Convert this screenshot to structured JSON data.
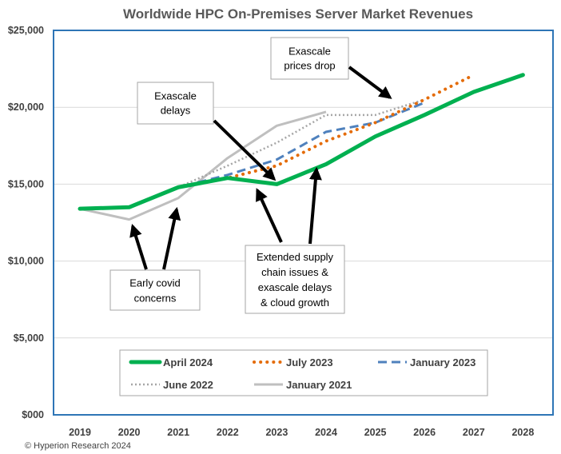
{
  "chart_data": {
    "type": "line",
    "title": "Worldwide HPC On-Premises Server Market Revenues",
    "xlabel": "",
    "ylabel": "",
    "x": [
      "2019",
      "2020",
      "2021",
      "2022",
      "2023",
      "2024",
      "2025",
      "2026",
      "2027",
      "2028"
    ],
    "y_ticks": [
      "$000",
      "$5,000",
      "$10,000",
      "$15,000",
      "$20,000",
      "$25,000"
    ],
    "ylim": [
      0,
      25000
    ],
    "grid": "horizontal",
    "legend_position": "bottom-inside",
    "series": [
      {
        "name": "April 2024",
        "color": "#00b050",
        "style": "solid-thick",
        "values": [
          13400,
          13500,
          14800,
          15400,
          15000,
          16300,
          18100,
          19500,
          21000,
          22100
        ]
      },
      {
        "name": "July 2023",
        "color": "#e46c0a",
        "style": "dotted-round",
        "values": [
          13400,
          13500,
          14800,
          15400,
          16200,
          17800,
          19000,
          20500,
          22100,
          null
        ]
      },
      {
        "name": "January 2023",
        "color": "#4f81bd",
        "style": "dashed",
        "values": [
          13400,
          13500,
          14800,
          15600,
          16600,
          18400,
          19000,
          20300,
          null,
          null
        ]
      },
      {
        "name": "June 2022",
        "color": "#a6a6a6",
        "style": "dotted",
        "values": [
          13400,
          13500,
          14800,
          16200,
          17700,
          19500,
          19500,
          20500,
          null,
          null
        ]
      },
      {
        "name": "January 2021",
        "color": "#bfbfbf",
        "style": "solid",
        "values": [
          13400,
          12700,
          14100,
          16700,
          18800,
          19700,
          null,
          null,
          null,
          null
        ]
      }
    ],
    "annotations": [
      {
        "id": "exascale-prices",
        "lines": [
          "Exascale",
          "prices drop"
        ],
        "target_year": 2025,
        "target_value": 19300
      },
      {
        "id": "exascale-delays",
        "lines": [
          "Exascale",
          "delays"
        ],
        "target_year": 2023,
        "target_value": 15200
      },
      {
        "id": "early-covid",
        "lines": [
          "Early covid",
          "concerns"
        ],
        "targets": [
          [
            2020,
            12600
          ],
          [
            2021,
            13600
          ]
        ]
      },
      {
        "id": "supply-chain",
        "lines": [
          "Extended supply",
          "chain issues &",
          "exascale delays",
          "& cloud growth"
        ],
        "targets": [
          [
            2023,
            14900
          ],
          [
            2024,
            16100
          ]
        ]
      }
    ]
  },
  "credit": "© Hyperion Research 2024",
  "colors": {
    "plot_border": "#2e75b6",
    "gridline": "#d9d9d9",
    "arrow": "#000000"
  }
}
